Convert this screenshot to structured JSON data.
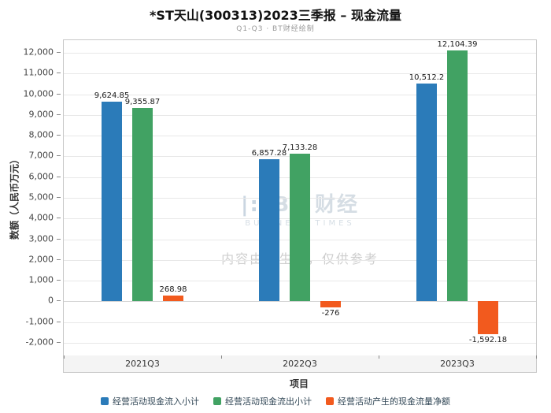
{
  "header": {
    "title": "*ST天山(300313)2023三季报 – 现金流量",
    "subtitle": "Q1-Q3 · BT财经绘制"
  },
  "watermark": {
    "logo": "|:|",
    "brand": "BT 财经",
    "brand_sub": "BUSINESS TIMES",
    "note": "内容由AI生成，仅供参考"
  },
  "chart_data": {
    "type": "bar",
    "title": "*ST天山(300313)2023三季报 – 现金流量",
    "subtitle": "Q1-Q3 · BT财经绘制",
    "categories": [
      "2021Q3",
      "2022Q3",
      "2023Q3"
    ],
    "series": [
      {
        "name": "经营活动现金流入小计",
        "color": "#2b7bb9",
        "values": [
          9624.85,
          6857.28,
          10512.2
        ],
        "labels": [
          "9,624.85",
          "6,857.28",
          "10,512.2"
        ]
      },
      {
        "name": "经营活动现金流出小计",
        "color": "#41a263",
        "values": [
          9355.87,
          7133.28,
          12104.39
        ],
        "labels": [
          "9,355.87",
          "7,133.28",
          "12,104.39"
        ]
      },
      {
        "name": "经营活动产生的现金流量净额",
        "color": "#f25a1e",
        "values": [
          268.98,
          -276,
          -1592.18
        ],
        "labels": [
          "268.98",
          "-276",
          "-1,592.18"
        ]
      }
    ],
    "xlabel": "项目",
    "ylabel": "数额（人民币万元）",
    "ylim": [
      -2000,
      12000
    ],
    "ytick_step": 1000,
    "grid": true,
    "legend_position": "bottom"
  }
}
